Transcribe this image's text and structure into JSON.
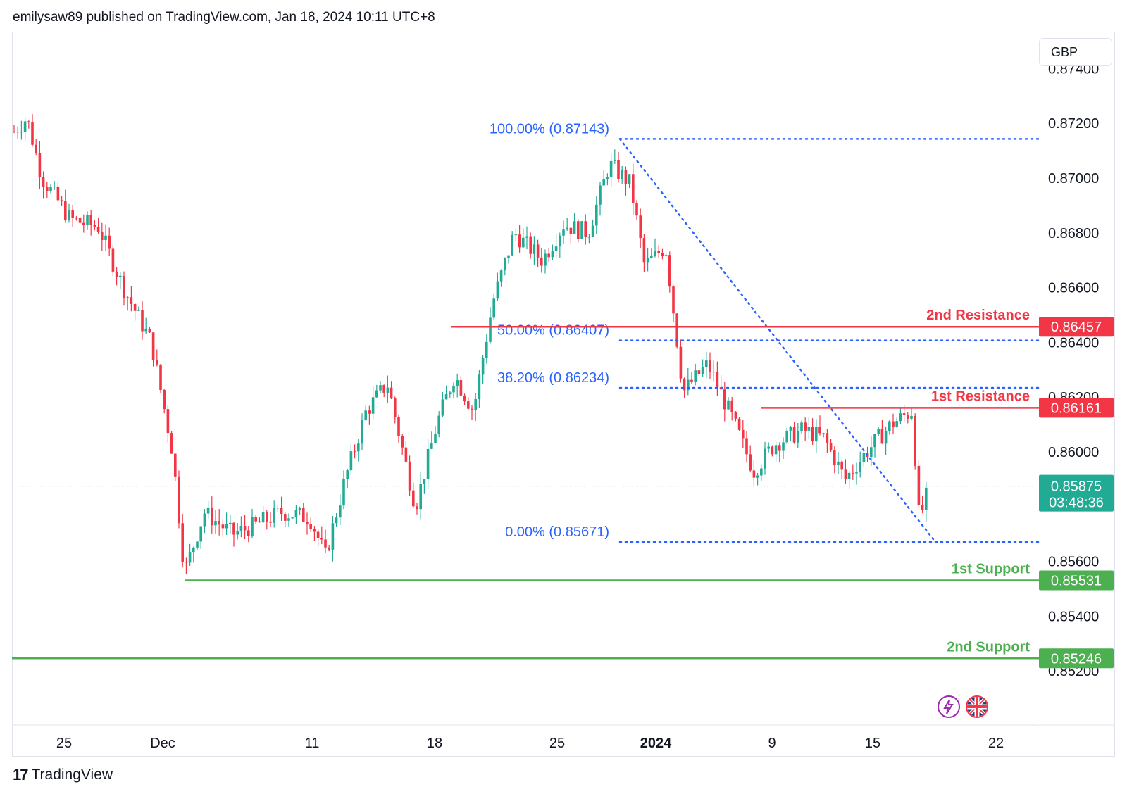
{
  "header": {
    "text": "emilysaw89 published on TradingView.com, Jan 18, 2024 10:11 UTC+8"
  },
  "currency_button": "GBP",
  "footer": {
    "brand": "TradingView"
  },
  "icons": {
    "lightning": "lightning-icon",
    "flag": "uk-flag-icon"
  },
  "chart_data": {
    "type": "candlestick",
    "y_ticks": [
      "0.87400",
      "0.87200",
      "0.87000",
      "0.86800",
      "0.86600",
      "0.86400",
      "0.86200",
      "0.86000",
      "0.85600",
      "0.85400",
      "0.85200"
    ],
    "x_ticks": [
      {
        "label": "25",
        "bold": false
      },
      {
        "label": "Dec",
        "bold": false
      },
      {
        "label": "11",
        "bold": false
      },
      {
        "label": "18",
        "bold": false
      },
      {
        "label": "25",
        "bold": false
      },
      {
        "label": "2024",
        "bold": true
      },
      {
        "label": "9",
        "bold": false
      },
      {
        "label": "15",
        "bold": false
      },
      {
        "label": "22",
        "bold": false
      }
    ],
    "current_price": "0.85875",
    "countdown": "03:48:36",
    "levels": [
      {
        "label": "2nd Resistance",
        "price": "0.86457",
        "kind": "resistance"
      },
      {
        "label": "1st Resistance",
        "price": "0.86161",
        "kind": "resistance"
      },
      {
        "label": "1st Support",
        "price": "0.85531",
        "kind": "support"
      },
      {
        "label": "2nd Support",
        "price": "0.85246",
        "kind": "support"
      }
    ],
    "fibonacci": [
      {
        "label": "100.00% (0.87143)",
        "price": 0.87143
      },
      {
        "label": "50.00% (0.86407)",
        "price": 0.86407
      },
      {
        "label": "38.20% (0.86234)",
        "price": 0.86234
      },
      {
        "label": "0.00% (0.85671)",
        "price": 0.85671
      }
    ],
    "colors": {
      "up": "#22ab94",
      "down": "#f23645",
      "resistance": "#f23645",
      "support": "#4caf50",
      "fib": "#2962ff",
      "fib_text": "#2962ff"
    }
  }
}
